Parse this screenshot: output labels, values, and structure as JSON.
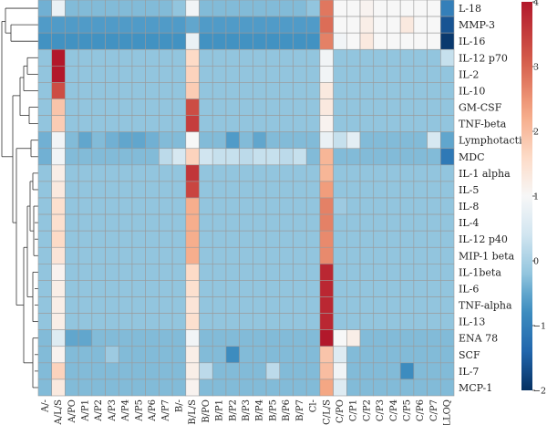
{
  "chart_data": {
    "type": "heatmap",
    "title": "",
    "xlabel": "",
    "ylabel": "",
    "columns": [
      "A/-",
      "A/L/S",
      "A/PO",
      "A/P1",
      "A/P2",
      "A/P3",
      "A/P4",
      "A/P5",
      "A/P6",
      "A/P7",
      "B/-",
      "B/L/S",
      "B/PO",
      "B/P1",
      "B/P2",
      "B/P3",
      "B/P4",
      "B/P5",
      "B/P6",
      "B/P7",
      "Cl-",
      "C/L/S",
      "C/PO",
      "C/P1",
      "C/P2",
      "C/P3",
      "C/P4",
      "C/P5",
      "C/P6",
      "C/P7",
      "LLOQ"
    ],
    "rows": [
      "L-18",
      "MMP-3",
      "IL-16",
      "IL-12 p70",
      "IL-2",
      "IL-10",
      "GM-CSF",
      "TNF-beta",
      "Lymphotactin",
      "MDC",
      "IL-1 alpha",
      "IL-5",
      "IL-8",
      "IL-4",
      "IL-12 p40",
      "MIP-1 beta",
      "IL-1beta",
      "IL-6",
      "TNF-alpha",
      "IL-13",
      "ENA 78",
      "SCF",
      "IL-7",
      "MCP-1"
    ],
    "values": [
      [
        -0.4,
        0.8,
        -0.3,
        -0.3,
        -0.3,
        -0.3,
        -0.3,
        -0.3,
        -0.3,
        -0.3,
        -0.2,
        0.9,
        -0.3,
        -0.3,
        -0.3,
        -0.3,
        -0.3,
        -0.3,
        -0.3,
        -0.3,
        -0.2,
        2.8,
        1.0,
        1.0,
        1.1,
        1.0,
        1.0,
        1.0,
        1.0,
        1.0,
        -1.0
      ],
      [
        -0.6,
        -0.6,
        -0.6,
        -0.6,
        -0.6,
        -0.6,
        -0.6,
        -0.6,
        -0.6,
        -0.6,
        -0.6,
        -0.5,
        -0.6,
        -0.6,
        -0.6,
        -0.6,
        -0.6,
        -0.6,
        -0.6,
        -0.6,
        -0.6,
        2.9,
        1.0,
        1.0,
        1.2,
        1.0,
        1.0,
        1.3,
        1.0,
        1.0,
        -1.6
      ],
      [
        -0.7,
        -0.7,
        -0.7,
        -0.7,
        -0.7,
        -0.7,
        -0.7,
        -0.7,
        -0.7,
        -0.7,
        -0.7,
        0.8,
        -0.7,
        -0.7,
        -0.7,
        -0.7,
        -0.7,
        -0.7,
        -0.7,
        -0.7,
        -0.7,
        2.7,
        0.9,
        1.0,
        1.3,
        1.0,
        1.0,
        1.0,
        1.0,
        1.0,
        -1.9
      ],
      [
        -0.2,
        4.0,
        -0.2,
        -0.2,
        -0.2,
        -0.2,
        -0.2,
        -0.2,
        -0.2,
        -0.2,
        -0.2,
        1.6,
        -0.2,
        -0.2,
        -0.2,
        -0.2,
        -0.2,
        -0.2,
        -0.2,
        -0.2,
        -0.2,
        0.9,
        -0.2,
        -0.2,
        -0.2,
        -0.2,
        -0.2,
        -0.2,
        -0.2,
        -0.2,
        0.3
      ],
      [
        -0.2,
        4.0,
        -0.2,
        -0.2,
        -0.2,
        -0.2,
        -0.2,
        -0.2,
        -0.2,
        -0.2,
        -0.2,
        1.7,
        -0.2,
        -0.2,
        -0.2,
        -0.2,
        -0.2,
        -0.2,
        -0.2,
        -0.2,
        -0.2,
        0.9,
        -0.2,
        -0.2,
        -0.2,
        -0.2,
        -0.2,
        -0.2,
        -0.2,
        -0.2,
        -0.2
      ],
      [
        -0.2,
        3.3,
        -0.2,
        -0.2,
        -0.2,
        -0.2,
        -0.2,
        -0.2,
        -0.2,
        -0.2,
        -0.2,
        1.8,
        -0.2,
        -0.2,
        -0.2,
        -0.2,
        -0.2,
        -0.2,
        -0.2,
        -0.2,
        -0.2,
        1.3,
        -0.2,
        -0.2,
        -0.2,
        -0.2,
        -0.2,
        -0.2,
        -0.2,
        -0.2,
        -0.2
      ],
      [
        -0.2,
        1.9,
        -0.2,
        -0.2,
        -0.2,
        -0.2,
        -0.2,
        -0.2,
        -0.2,
        -0.2,
        -0.2,
        3.3,
        -0.2,
        -0.2,
        -0.2,
        -0.2,
        -0.2,
        -0.2,
        -0.2,
        -0.2,
        -0.2,
        1.3,
        -0.2,
        -0.2,
        -0.2,
        -0.2,
        -0.2,
        -0.2,
        -0.2,
        -0.2,
        -0.2
      ],
      [
        -0.2,
        1.8,
        -0.2,
        -0.2,
        -0.2,
        -0.2,
        -0.2,
        -0.2,
        -0.2,
        -0.2,
        -0.2,
        3.5,
        -0.2,
        -0.2,
        -0.2,
        -0.2,
        -0.2,
        -0.2,
        -0.2,
        -0.2,
        -0.2,
        1.1,
        -0.2,
        -0.2,
        -0.2,
        -0.2,
        -0.2,
        -0.2,
        -0.2,
        -0.2,
        -0.2
      ],
      [
        -0.4,
        0.9,
        -0.3,
        -0.5,
        -0.3,
        -0.4,
        -0.5,
        -0.5,
        -0.4,
        -0.3,
        -0.3,
        1.0,
        -0.3,
        -0.3,
        -0.6,
        -0.3,
        -0.5,
        -0.3,
        -0.3,
        -0.3,
        -0.3,
        0.8,
        0.3,
        0.7,
        -0.3,
        -0.3,
        -0.3,
        -0.3,
        -0.3,
        0.5,
        -0.5
      ],
      [
        -0.4,
        0.9,
        -0.3,
        -0.3,
        -0.3,
        -0.3,
        -0.3,
        -0.3,
        -0.3,
        0.2,
        0.5,
        1.7,
        0.4,
        0.3,
        0.3,
        0.2,
        0.3,
        0.3,
        0.2,
        0.3,
        -0.3,
        2.1,
        -0.3,
        -0.3,
        -0.3,
        -0.3,
        -0.3,
        -0.3,
        -0.3,
        -0.3,
        -1.1
      ],
      [
        -0.2,
        1.2,
        -0.2,
        -0.2,
        -0.2,
        -0.2,
        -0.2,
        -0.2,
        -0.2,
        -0.2,
        -0.2,
        3.6,
        -0.2,
        -0.2,
        -0.2,
        -0.2,
        -0.2,
        -0.2,
        -0.2,
        -0.2,
        -0.2,
        2.1,
        -0.2,
        -0.2,
        -0.2,
        -0.2,
        -0.2,
        -0.2,
        -0.2,
        -0.2,
        -0.2
      ],
      [
        -0.2,
        1.3,
        -0.2,
        -0.2,
        -0.2,
        -0.2,
        -0.2,
        -0.2,
        -0.2,
        -0.2,
        -0.2,
        3.4,
        -0.2,
        -0.2,
        -0.2,
        -0.2,
        -0.2,
        -0.2,
        -0.2,
        -0.2,
        -0.2,
        2.4,
        -0.2,
        -0.2,
        -0.2,
        -0.2,
        -0.2,
        -0.2,
        -0.2,
        -0.2,
        -0.2
      ],
      [
        -0.2,
        1.5,
        -0.2,
        -0.2,
        -0.2,
        -0.2,
        -0.2,
        -0.2,
        -0.2,
        -0.2,
        -0.2,
        2.2,
        -0.2,
        -0.2,
        -0.2,
        -0.2,
        -0.2,
        -0.2,
        -0.2,
        -0.2,
        -0.2,
        2.7,
        -0.1,
        -0.2,
        -0.2,
        -0.2,
        -0.2,
        -0.2,
        -0.2,
        -0.2,
        -0.2
      ],
      [
        -0.2,
        1.5,
        -0.2,
        -0.2,
        -0.2,
        -0.2,
        -0.2,
        -0.2,
        -0.2,
        -0.2,
        -0.2,
        2.2,
        -0.2,
        -0.2,
        -0.2,
        -0.2,
        -0.2,
        -0.2,
        -0.2,
        -0.2,
        -0.2,
        2.7,
        -0.2,
        -0.2,
        -0.2,
        -0.2,
        -0.2,
        -0.2,
        -0.2,
        -0.2,
        -0.2
      ],
      [
        -0.2,
        1.6,
        -0.2,
        -0.2,
        -0.2,
        -0.2,
        -0.2,
        -0.2,
        -0.2,
        -0.2,
        -0.2,
        2.2,
        -0.2,
        -0.2,
        -0.2,
        -0.2,
        -0.2,
        -0.2,
        -0.2,
        -0.2,
        -0.2,
        2.6,
        -0.2,
        -0.2,
        -0.2,
        -0.2,
        -0.2,
        -0.2,
        -0.2,
        -0.2,
        -0.2
      ],
      [
        -0.2,
        1.4,
        -0.2,
        -0.2,
        -0.2,
        -0.2,
        -0.2,
        -0.2,
        -0.2,
        -0.2,
        -0.2,
        2.2,
        -0.2,
        -0.2,
        -0.2,
        -0.2,
        -0.2,
        -0.2,
        -0.2,
        -0.2,
        -0.2,
        2.6,
        -0.2,
        -0.2,
        -0.2,
        -0.2,
        -0.2,
        -0.2,
        -0.2,
        -0.2,
        -0.2
      ],
      [
        -0.2,
        1.1,
        -0.2,
        -0.2,
        -0.2,
        -0.2,
        -0.2,
        -0.2,
        -0.2,
        -0.2,
        -0.2,
        1.6,
        -0.2,
        -0.2,
        -0.2,
        -0.2,
        -0.2,
        -0.2,
        -0.2,
        -0.2,
        -0.2,
        3.8,
        -0.2,
        -0.2,
        -0.2,
        -0.2,
        -0.2,
        -0.2,
        -0.2,
        -0.2,
        -0.2
      ],
      [
        -0.2,
        1.2,
        -0.2,
        -0.2,
        -0.2,
        -0.2,
        -0.2,
        -0.2,
        -0.2,
        -0.2,
        -0.2,
        1.5,
        -0.2,
        -0.2,
        -0.2,
        -0.2,
        -0.2,
        -0.2,
        -0.2,
        -0.2,
        -0.2,
        3.8,
        -0.2,
        -0.2,
        -0.2,
        -0.2,
        -0.2,
        -0.2,
        -0.2,
        -0.2,
        -0.2
      ],
      [
        -0.2,
        1.2,
        -0.2,
        -0.2,
        -0.2,
        -0.2,
        -0.2,
        -0.2,
        -0.2,
        -0.2,
        -0.2,
        1.4,
        -0.2,
        -0.2,
        -0.2,
        -0.2,
        -0.2,
        -0.2,
        -0.2,
        -0.2,
        -0.2,
        3.8,
        -0.2,
        -0.2,
        -0.2,
        -0.2,
        -0.2,
        -0.2,
        -0.2,
        -0.2,
        -0.2
      ],
      [
        -0.2,
        1.2,
        -0.2,
        -0.2,
        -0.2,
        -0.2,
        -0.2,
        -0.2,
        -0.2,
        -0.2,
        -0.2,
        1.5,
        -0.2,
        -0.2,
        -0.2,
        -0.2,
        -0.2,
        -0.2,
        -0.2,
        -0.2,
        -0.2,
        3.8,
        -0.2,
        -0.2,
        -0.2,
        -0.2,
        -0.2,
        -0.2,
        -0.2,
        -0.2,
        -0.2
      ],
      [
        -0.3,
        0.6,
        -0.5,
        -0.5,
        -0.3,
        -0.3,
        -0.3,
        -0.3,
        -0.3,
        -0.3,
        -0.3,
        0.9,
        -0.3,
        -0.3,
        -0.3,
        -0.3,
        -0.3,
        -0.3,
        -0.3,
        -0.3,
        -0.3,
        4.0,
        1.0,
        1.2,
        -0.3,
        -0.3,
        -0.3,
        -0.3,
        -0.3,
        -0.3,
        -0.3
      ],
      [
        -0.3,
        1.1,
        -0.3,
        -0.3,
        -0.3,
        -0.1,
        -0.3,
        -0.3,
        -0.3,
        -0.3,
        -0.3,
        1.2,
        -0.3,
        -0.3,
        -0.8,
        -0.3,
        -0.3,
        -0.3,
        -0.3,
        -0.3,
        -0.3,
        1.9,
        0.6,
        -0.3,
        -0.3,
        -0.3,
        -0.3,
        -0.3,
        -0.3,
        -0.3,
        -0.3
      ],
      [
        -0.3,
        1.7,
        -0.3,
        -0.3,
        -0.3,
        -0.3,
        -0.3,
        -0.3,
        -0.3,
        -0.3,
        -0.3,
        1.2,
        0.2,
        -0.3,
        -0.3,
        -0.3,
        -0.3,
        0.2,
        -0.3,
        -0.3,
        -0.3,
        2.0,
        0.9,
        -0.3,
        -0.3,
        -0.3,
        -0.3,
        -0.8,
        -0.3,
        -0.3,
        -0.3
      ],
      [
        -0.3,
        1.3,
        -0.3,
        -0.3,
        -0.3,
        -0.3,
        -0.3,
        -0.3,
        -0.3,
        -0.3,
        -0.3,
        1.1,
        -0.3,
        -0.3,
        -0.3,
        -0.3,
        -0.3,
        -0.3,
        -0.3,
        -0.3,
        -0.3,
        2.3,
        0.6,
        -0.3,
        -0.3,
        -0.3,
        -0.3,
        -0.3,
        -0.3,
        -0.3,
        -0.3
      ]
    ],
    "colorbar": {
      "min": -2,
      "max": 4,
      "ticks": [
        -2,
        -1,
        0,
        1,
        2,
        3,
        4
      ],
      "center": 1
    },
    "colors": {
      "low": "#2166ac",
      "mid": "#f7f7f7",
      "high": "#b2182b",
      "grid": "#9a9a9a"
    },
    "grid": true,
    "legend": "right",
    "dendrogram": "left"
  }
}
